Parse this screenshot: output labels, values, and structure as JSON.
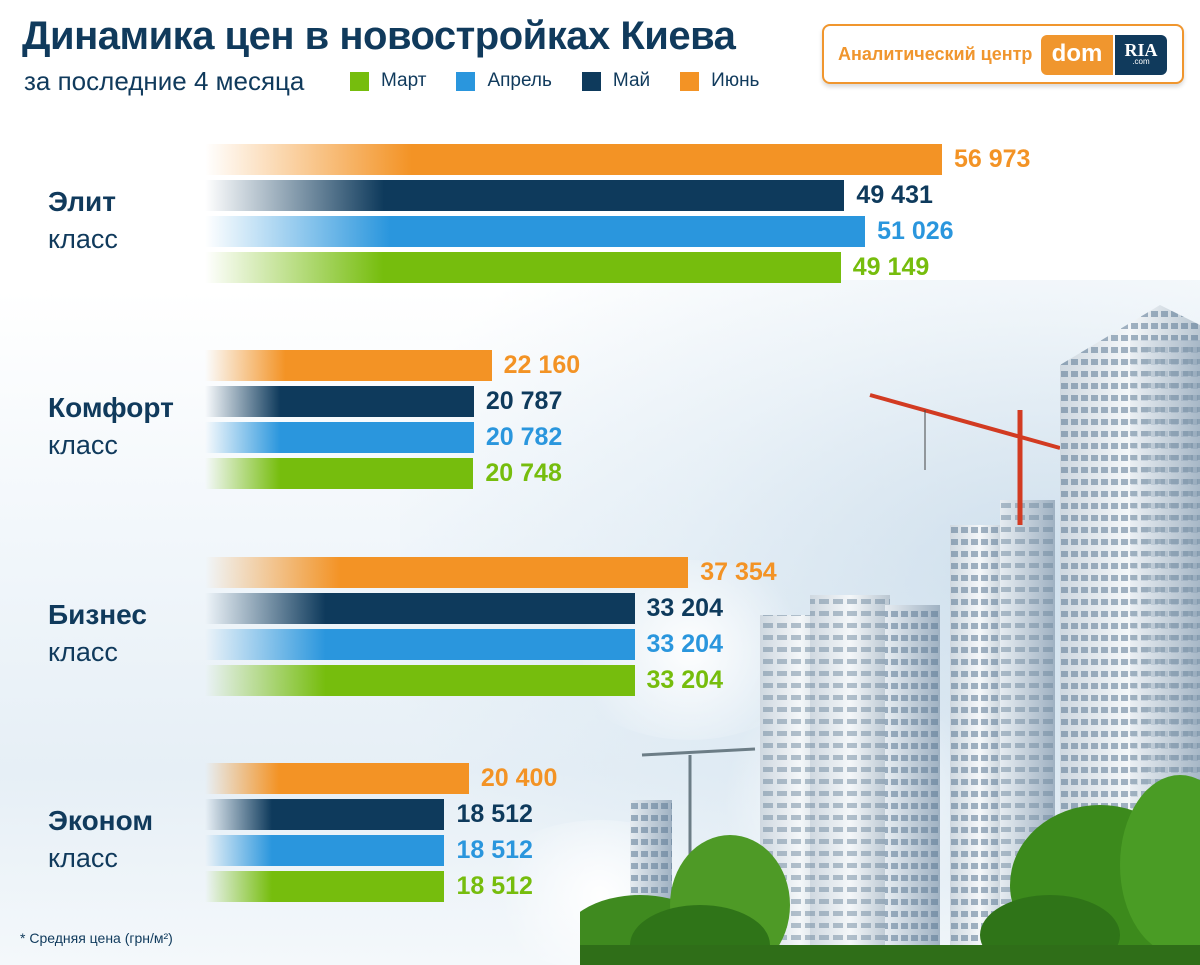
{
  "header": {
    "title": "Динамика цен в новостройках Киева",
    "subtitle": "за последние 4 месяца"
  },
  "logo": {
    "text": "Аналитический центр",
    "dom": "dom",
    "ria": "RIA",
    "ria_small": ".com"
  },
  "colors": {
    "mart": "#76bd0d",
    "april": "#2a96dd",
    "may": "#0e3a5c",
    "june": "#f39325",
    "title": "#103a5c"
  },
  "footnote": "* Средняя цена (грн/м²)",
  "chart_data": {
    "type": "bar",
    "orientation": "horizontal",
    "title": "Динамика цен в новостройках Киева",
    "subtitle": "за последние 4 месяца",
    "categories": [
      "Элит класс",
      "Комфорт класс",
      "Бизнес класс",
      "Эконом класс"
    ],
    "category_labels": [
      {
        "name": "Элит",
        "sub": "класс"
      },
      {
        "name": "Комфорт",
        "sub": "класс"
      },
      {
        "name": "Бизнес",
        "sub": "класс"
      },
      {
        "name": "Эконом",
        "sub": "класс"
      }
    ],
    "series": [
      {
        "name": "Июнь",
        "color": "#f39325",
        "values": [
          56973,
          22160,
          37354,
          20400
        ],
        "labels": [
          "56 973",
          "22 160",
          "37 354",
          "20 400"
        ]
      },
      {
        "name": "Май",
        "color": "#0e3a5c",
        "values": [
          49431,
          20787,
          33204,
          18512
        ],
        "labels": [
          "49 431",
          "20 787",
          "33 204",
          "18 512"
        ]
      },
      {
        "name": "Апрель",
        "color": "#2a96dd",
        "values": [
          51026,
          20782,
          33204,
          18512
        ],
        "labels": [
          "51 026",
          "20 782",
          "33 204",
          "18 512"
        ]
      },
      {
        "name": "Март",
        "color": "#76bd0d",
        "values": [
          49149,
          20748,
          33204,
          18512
        ],
        "labels": [
          "49 149",
          "20 748",
          "33 204",
          "18 512"
        ]
      }
    ],
    "legend": [
      "Март",
      "Апрель",
      "Май",
      "Июнь"
    ],
    "legend_colors": [
      "#76bd0d",
      "#2a96dd",
      "#0e3a5c",
      "#f39325"
    ],
    "value_label_colors": [
      "#f39325",
      "#0e3a5c",
      "#2a96dd",
      "#76bd0d"
    ],
    "grid": false,
    "legend_position": "top"
  }
}
